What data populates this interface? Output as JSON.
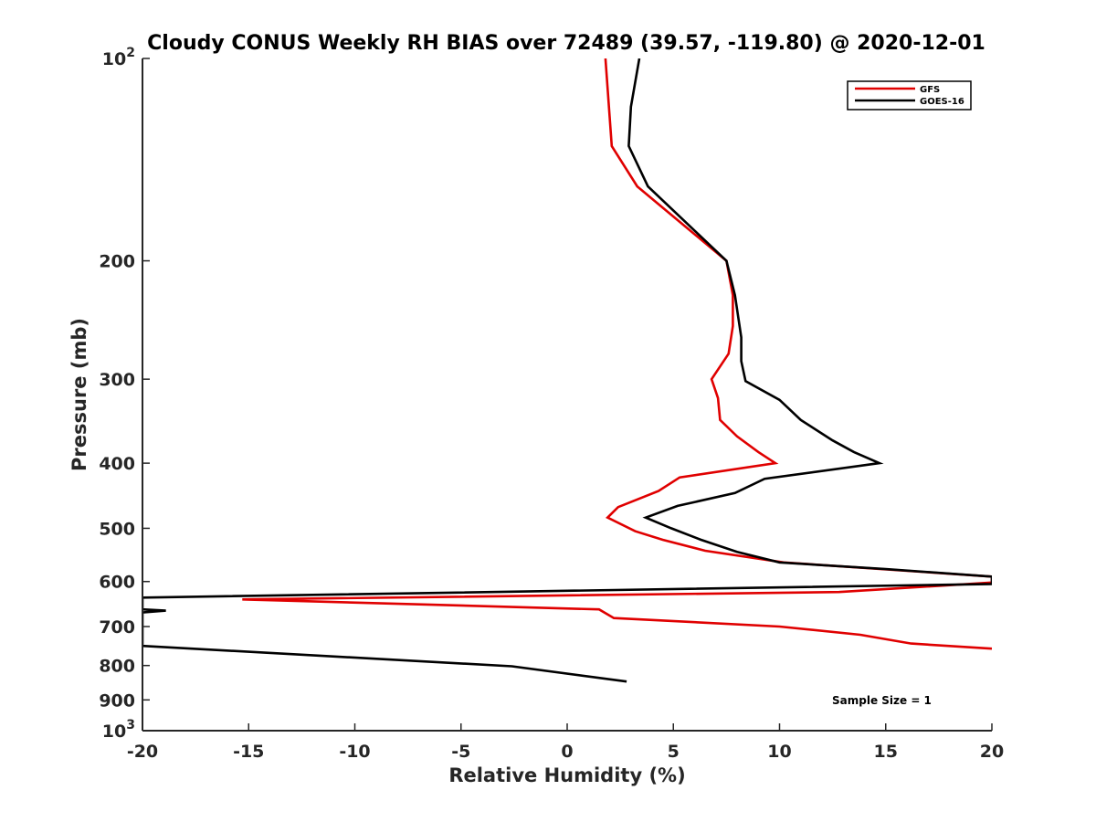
{
  "chart_data": {
    "type": "line",
    "title": "Cloudy CONUS Weekly RH BIAS over 72489 (39.57, -119.80) @ 2020-12-01",
    "xlabel": "Relative Humidity (%)",
    "ylabel": "Pressure (mb)",
    "xlim": [
      -20,
      20
    ],
    "ylim": [
      100,
      1000
    ],
    "y_scale": "log",
    "y_reversed": true,
    "grid": false,
    "legend_position": "top-right",
    "x_ticks": [
      "-20",
      "-15",
      "-10",
      "-5",
      "0",
      "5",
      "10",
      "15",
      "20"
    ],
    "y_ticks": [
      {
        "value": 100,
        "base": "10",
        "exp": "2"
      },
      {
        "value": 200,
        "label": "200"
      },
      {
        "value": 300,
        "label": "300"
      },
      {
        "value": 400,
        "label": "400"
      },
      {
        "value": 500,
        "label": "500"
      },
      {
        "value": 600,
        "label": "600"
      },
      {
        "value": 700,
        "label": "700"
      },
      {
        "value": 800,
        "label": "800"
      },
      {
        "value": 900,
        "label": "900"
      },
      {
        "value": 1000,
        "base": "10",
        "exp": "3"
      }
    ],
    "series": [
      {
        "name": "GFS",
        "color": "#e00000",
        "points": [
          [
            1.8,
            100
          ],
          [
            2.1,
            135
          ],
          [
            3.3,
            155
          ],
          [
            7.5,
            200
          ],
          [
            7.8,
            225
          ],
          [
            7.8,
            250
          ],
          [
            7.6,
            275
          ],
          [
            6.8,
            300
          ],
          [
            7.1,
            320
          ],
          [
            7.2,
            345
          ],
          [
            8.0,
            365
          ],
          [
            9.0,
            385
          ],
          [
            9.8,
            400
          ],
          [
            5.3,
            420
          ],
          [
            4.3,
            440
          ],
          [
            2.4,
            465
          ],
          [
            1.9,
            482
          ],
          [
            3.2,
            505
          ],
          [
            4.5,
            520
          ],
          [
            6.5,
            540
          ],
          [
            10.2,
            562
          ],
          [
            14.8,
            575
          ],
          [
            20.0,
            590
          ],
          [
            20.0,
            602
          ],
          [
            12.8,
            622
          ],
          [
            -15.3,
            638
          ],
          [
            1.5,
            660
          ],
          [
            2.2,
            680
          ],
          [
            10.0,
            700
          ],
          [
            13.8,
            720
          ],
          [
            16.2,
            742
          ],
          [
            20.0,
            755
          ]
        ]
      },
      {
        "name": "GOES-16",
        "color": "#000000",
        "points": [
          [
            3.4,
            100
          ],
          [
            3.0,
            118
          ],
          [
            2.9,
            135
          ],
          [
            3.8,
            155
          ],
          [
            7.5,
            200
          ],
          [
            7.9,
            225
          ],
          [
            8.2,
            260
          ],
          [
            8.2,
            282
          ],
          [
            8.4,
            302
          ],
          [
            10.0,
            322
          ],
          [
            11.0,
            345
          ],
          [
            12.5,
            370
          ],
          [
            13.5,
            385
          ],
          [
            14.7,
            400
          ],
          [
            9.3,
            422
          ],
          [
            7.9,
            443
          ],
          [
            5.2,
            463
          ],
          [
            3.7,
            482
          ],
          [
            4.9,
            500
          ],
          [
            6.3,
            520
          ],
          [
            8.0,
            542
          ],
          [
            10.0,
            562
          ],
          [
            15.0,
            575
          ],
          [
            20.0,
            590
          ],
          [
            20.0,
            605
          ],
          [
            -20.0,
            634
          ],
          [
            -20.0,
            660
          ],
          [
            -18.9,
            663
          ],
          [
            -20.0,
            667
          ],
          [
            -20.0,
            748
          ],
          [
            -2.6,
            802
          ],
          [
            2.8,
            845
          ]
        ]
      }
    ],
    "annotations": [
      "Sample Size = 1"
    ]
  }
}
